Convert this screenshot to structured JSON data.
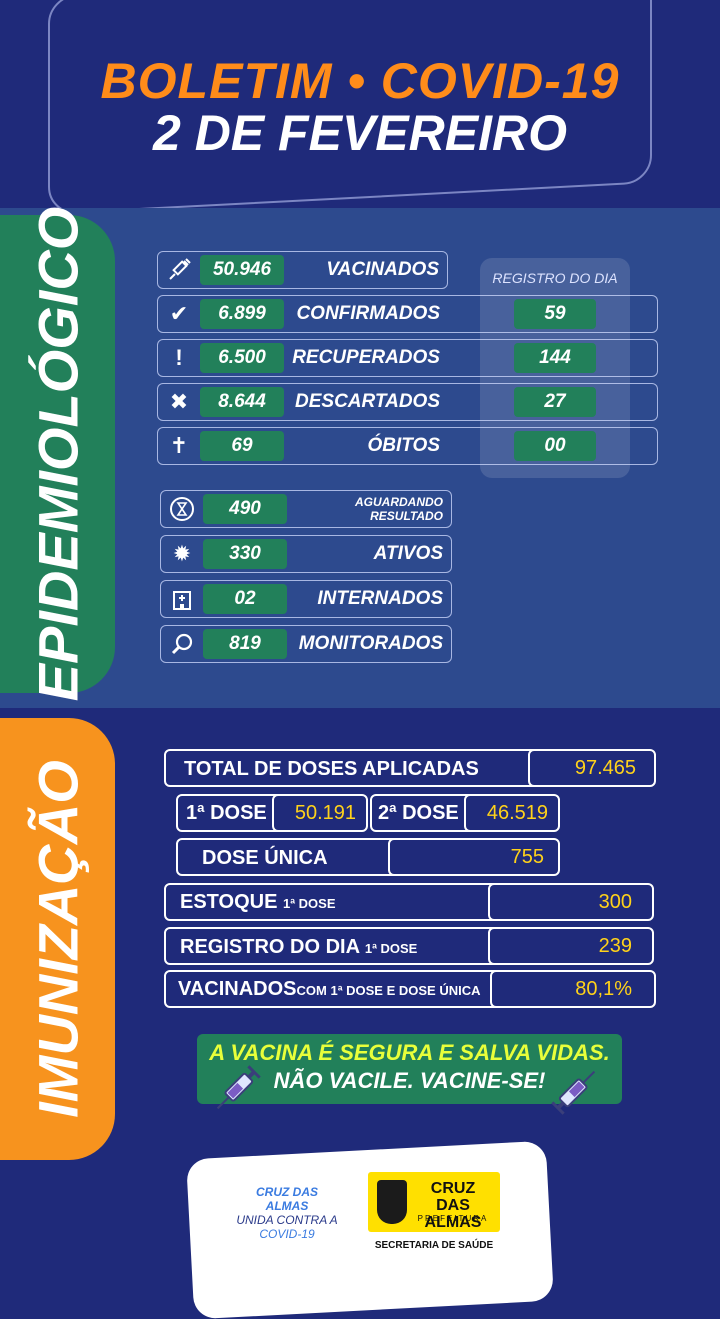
{
  "header": {
    "title_line1": "BOLETIM • COVID-19",
    "title_line2": "2 DE FEVEREIRO"
  },
  "epidemiologico": {
    "section_label": "EPIDEMIOLÓGICO",
    "daily_title": "REGISTRO DO DIA",
    "stats": [
      {
        "icon": "syringe-icon",
        "value": "50.946",
        "label": "VACINADOS"
      },
      {
        "icon": "check-icon",
        "value": "6.899",
        "label": "CONFIRMADOS",
        "daily": "59"
      },
      {
        "icon": "exclamation-icon",
        "value": "6.500",
        "label": "RECUPERADOS",
        "daily": "144"
      },
      {
        "icon": "x-icon",
        "value": "8.644",
        "label": "DESCARTADOS",
        "daily": "27"
      },
      {
        "icon": "cross-icon",
        "value": "69",
        "label": "ÓBITOS",
        "daily": "00"
      }
    ],
    "status": [
      {
        "icon": "hourglass-icon",
        "value": "490",
        "label_line1": "AGUARDANDO",
        "label_line2": "RESULTADO"
      },
      {
        "icon": "virus-icon",
        "value": "330",
        "label": "ATIVOS"
      },
      {
        "icon": "hospital-icon",
        "value": "02",
        "label": "INTERNADOS"
      },
      {
        "icon": "magnifier-icon",
        "value": "819",
        "label": "MONITORADOS"
      }
    ]
  },
  "imunizacao": {
    "section_label": "IMUNIZAÇÃO",
    "total": {
      "label": "TOTAL DE DOSES APLICADAS",
      "value": "97.465"
    },
    "dose1": {
      "label": "1ª DOSE",
      "value": "50.191"
    },
    "dose2": {
      "label": "2ª DOSE",
      "value": "46.519"
    },
    "dose_unica": {
      "label": "DOSE ÚNICA",
      "value": "755"
    },
    "estoque": {
      "label": "ESTOQUE",
      "sub": "1ª DOSE",
      "value": "300"
    },
    "registro": {
      "label": "REGISTRO DO DIA",
      "sub": "1ª DOSE",
      "value": "239"
    },
    "vacinados": {
      "label": "VACINADOS",
      "sub": "COM 1ª DOSE E DOSE ÚNICA",
      "value": "80,1%"
    },
    "slogan_line1": "A VACINA É SEGURA E SALVA VIDAS.",
    "slogan_line2": "NÃO VACILE. VACINE-SE!"
  },
  "footer": {
    "campaign_line1": "CRUZ DAS",
    "campaign_line2": "ALMAS",
    "campaign_line3": "UNIDA CONTRA A",
    "campaign_line4": "COVID-19",
    "city_name_line1": "CRUZ",
    "city_name_line2": "DAS ALMAS",
    "city_name_line3": "PREFEITURA",
    "department": "SECRETARIA DE SAÚDE"
  },
  "colors": {
    "background": "#1f2a7a",
    "panel": "#2d4a8e",
    "green": "#22805a",
    "orange": "#f7931e",
    "yellow": "#ffd21a"
  }
}
